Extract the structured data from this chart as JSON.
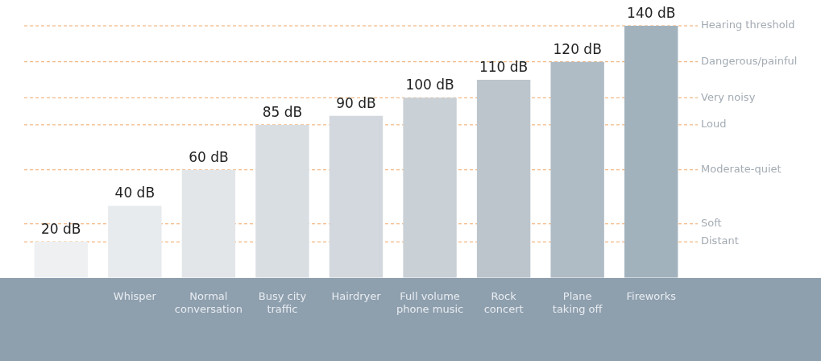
{
  "chart_data": {
    "type": "bar",
    "categories": [
      null,
      "Whisper",
      "Normal conversation",
      "Busy city traffic",
      "Hairdryer",
      "Full volume phone music",
      "Rock concert",
      "Plane taking off",
      "Fireworks"
    ],
    "values": [
      20,
      40,
      60,
      85,
      90,
      100,
      110,
      120,
      140
    ],
    "colors": [
      "#eef0f2",
      "#e8ebee",
      "#e2e6e9",
      "#d9dee3",
      "#d2d8dd",
      "#c9d0d6",
      "#bcc5cc",
      "#b0bcc5",
      "#a2b2bd"
    ],
    "value_labels": [
      "20 dB",
      "40 dB",
      "60 dB",
      "85 dB",
      "90 dB",
      "100 dB",
      "110 dB",
      "120 dB",
      "140 dB"
    ],
    "tick_labels": "x",
    "ref_lines": [
      {
        "axis": "y",
        "value": 140,
        "label": "Hearing threshold",
        "color": "#f0a868",
        "line_style": "dashed"
      },
      {
        "axis": "y",
        "value": 120,
        "label": "Dangerous/painful",
        "color": "#f0a868",
        "line_style": "dashed"
      },
      {
        "axis": "y",
        "value": 100,
        "label": "Very noisy",
        "color": "#f0a868",
        "line_style": "dashed"
      },
      {
        "axis": "y",
        "value": 85,
        "label": "Loud",
        "color": "#f0a868",
        "line_style": "dashed"
      },
      {
        "axis": "y",
        "value": 60,
        "label": "Moderate-quiet",
        "color": "#f0a868",
        "line_style": "dashed"
      },
      {
        "axis": "y",
        "value": 30,
        "label": "Soft",
        "color": "#f0a868",
        "line_style": "dashed"
      },
      {
        "axis": "y",
        "value": 20,
        "label": "Distant",
        "color": "#f0a868",
        "line_style": "dashed"
      }
    ],
    "legend": false,
    "grid": false
  }
}
